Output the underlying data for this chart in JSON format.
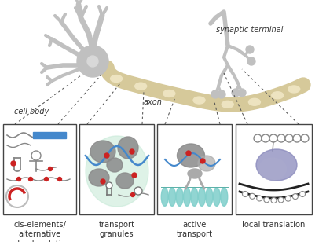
{
  "background_color": "#ffffff",
  "neuron_color": "#c0c0c0",
  "axon_color": "#d6c99a",
  "axon_inner_color": "#ede3c0",
  "box_labels": [
    "cis-elements/\nalternative\npolyadenylation",
    "transport\ngranules",
    "active\ntransport",
    "local translation"
  ],
  "label_fontsize": 7.2,
  "cell_body_label": "cell body",
  "axon_label": "axon",
  "synaptic_label": "synaptic terminal",
  "granule_color_dark": "#8a8a8a",
  "granule_color_mid": "#aaaaaa",
  "granule_color_light": "#c8c8c8",
  "green_bg": "#c8ead8",
  "teal_color": "#7ececa",
  "blue_color": "#4488cc",
  "red_color": "#cc2222",
  "purple_color": "#8888bb",
  "purple_light": "#aaaacc",
  "box_border_color": "#444444",
  "dashed_line_color": "#555555",
  "label_color": "#333333"
}
